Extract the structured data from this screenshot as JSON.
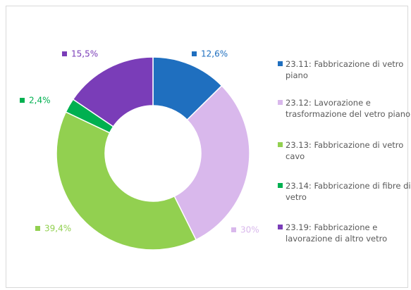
{
  "chart_data": {
    "type": "donut",
    "categories": [
      "23.11: Fabbricazione di vetro piano",
      "23.12: Lavorazione e trasformazione del vetro piano",
      "23.13: Fabbricazione di vetro cavo",
      "23.14: Fabbricazione di fibre di vetro",
      "23.19: Fabbricazione e lavorazione di altro vetro"
    ],
    "values": [
      12.6,
      30,
      39.4,
      2.4,
      15.5
    ],
    "value_labels": [
      "12,6%",
      "30%",
      "39,4%",
      "2,4%",
      "15,5%"
    ],
    "colors": [
      "#1f6fbf",
      "#d9b8ec",
      "#92d050",
      "#00b050",
      "#7a3db8"
    ],
    "legend": "right"
  }
}
